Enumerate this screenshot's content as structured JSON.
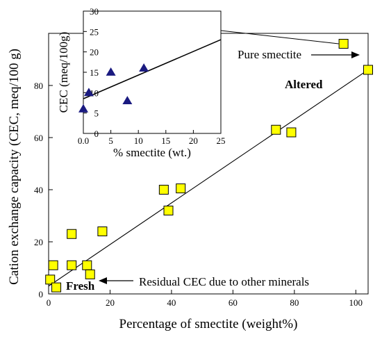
{
  "colors": {
    "square_fill": "#ffff00",
    "triangle_fill": "#1a1a80",
    "altered_color": "#e00000",
    "fresh_color": "#1aa3c9"
  },
  "chart_data": [
    {
      "type": "scatter",
      "title": "",
      "xlabel": "Percentage of smectite (weight%)",
      "ylabel": "Cation exchange capacity (CEC, meq/100 g)",
      "xlim": [
        0,
        104
      ],
      "ylim": [
        0,
        100
      ],
      "xticks": [
        "0",
        "20",
        "40",
        "60",
        "80",
        "100"
      ],
      "yticks": [
        "0",
        "20",
        "40",
        "60",
        "80"
      ],
      "marker": "square",
      "points": [
        {
          "x": 0.5,
          "y": 5.5
        },
        {
          "x": 1.5,
          "y": 11
        },
        {
          "x": 2.5,
          "y": 2.5
        },
        {
          "x": 7.5,
          "y": 23
        },
        {
          "x": 7.5,
          "y": 11
        },
        {
          "x": 12.5,
          "y": 11
        },
        {
          "x": 13.5,
          "y": 7.5
        },
        {
          "x": 17.5,
          "y": 24
        },
        {
          "x": 37.5,
          "y": 40
        },
        {
          "x": 39,
          "y": 32
        },
        {
          "x": 43,
          "y": 40.5
        },
        {
          "x": 74,
          "y": 63
        },
        {
          "x": 79,
          "y": 62
        },
        {
          "x": 96,
          "y": 96
        },
        {
          "x": 104,
          "y": 86
        }
      ],
      "trend_line": {
        "x": [
          0,
          104
        ],
        "y": [
          3,
          86
        ]
      },
      "annotations": {
        "pure_smectite": "Pure smectite",
        "altered": "Altered",
        "fresh": "Fresh",
        "residual": "Residual CEC due to other minerals"
      }
    },
    {
      "type": "scatter",
      "title": "",
      "xlabel": "% smectite (wt.)",
      "ylabel": "CEC (meq/100g)",
      "xlim": [
        0,
        25
      ],
      "ylim": [
        0,
        30
      ],
      "xticks": [
        "0.0",
        "5",
        "10",
        "15",
        "20",
        "25"
      ],
      "yticks": [
        "0",
        "5",
        "10",
        "15",
        "20",
        "25",
        "30"
      ],
      "marker": "triangle",
      "points": [
        {
          "x": 0,
          "y": 6
        },
        {
          "x": 1,
          "y": 10
        },
        {
          "x": 5,
          "y": 15
        },
        {
          "x": 8,
          "y": 8
        },
        {
          "x": 11,
          "y": 16
        }
      ],
      "trend_line": {
        "x": [
          0,
          25
        ],
        "y": [
          8.5,
          23
        ]
      }
    }
  ]
}
